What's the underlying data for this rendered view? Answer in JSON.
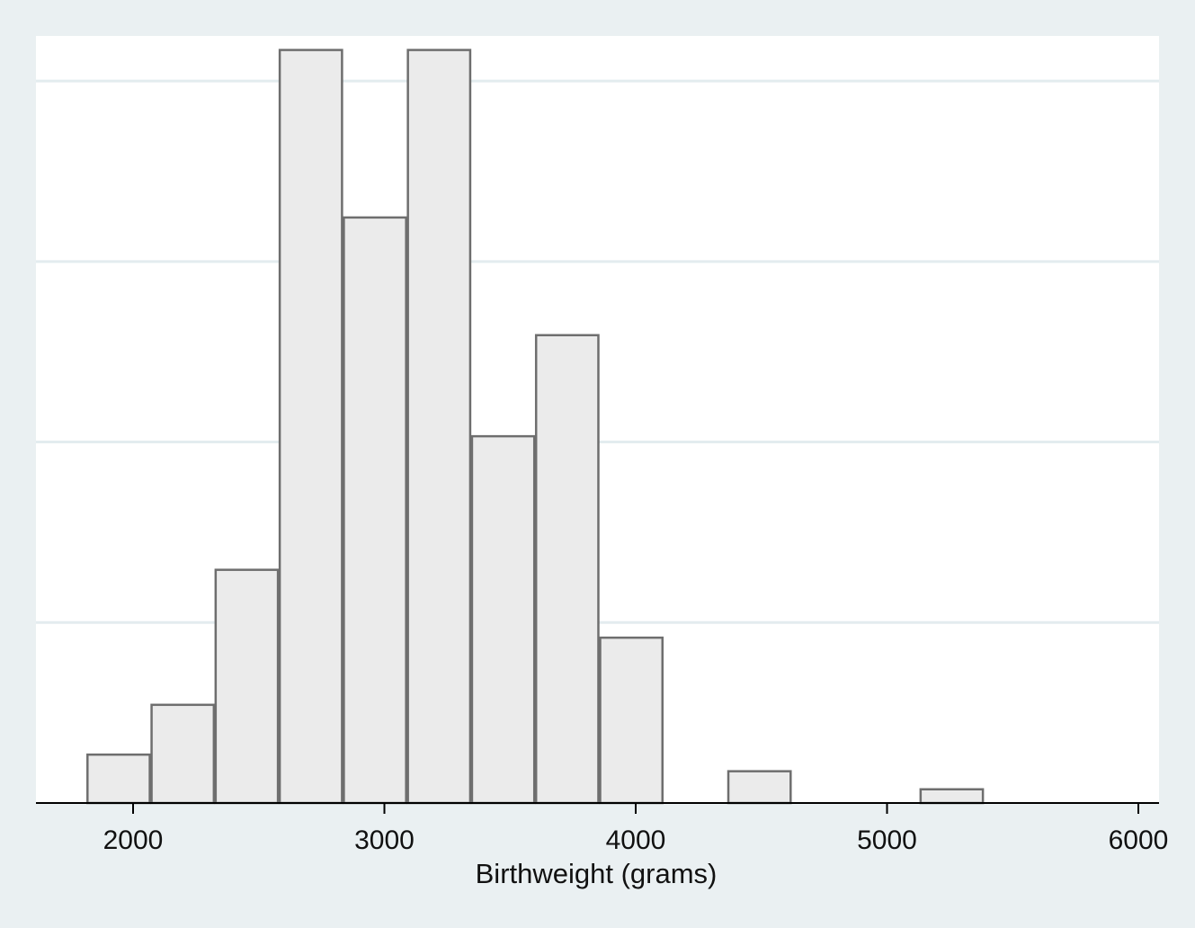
{
  "chart_data": {
    "type": "bar",
    "subtype": "histogram",
    "title": "",
    "xlabel": "Birthweight (grams)",
    "ylabel": "",
    "xlim": [
      1600,
      6050
    ],
    "ylim": [
      0,
      0.00104
    ],
    "x_ticks": [
      2000,
      3000,
      4000,
      5000,
      6000
    ],
    "x_tick_labels": [
      "2000",
      "3000",
      "4000",
      "5000",
      "6000"
    ],
    "y_gridlines": [
      0.00025,
      0.0005,
      0.00075,
      0.001
    ],
    "bin_edges": [
      1815,
      2070,
      2325,
      2580,
      2835,
      3090,
      3345,
      3600,
      3855,
      4110,
      4365,
      4620,
      4875,
      5130,
      5385
    ],
    "values": [
      6.7e-05,
      0.000136,
      0.000323,
      0.001043,
      0.000811,
      0.001043,
      0.000508,
      0.000648,
      0.000229,
      0,
      4.4e-05,
      0,
      0,
      1.9e-05
    ],
    "grid": true,
    "legend": "none",
    "colors": {
      "background": "#eaf0f2",
      "plot_background": "#ffffff",
      "bar_fill": "#ebebeb",
      "bar_stroke": "#6e6e6e",
      "gridline": "#e3ecef",
      "axis": "#000000"
    }
  }
}
